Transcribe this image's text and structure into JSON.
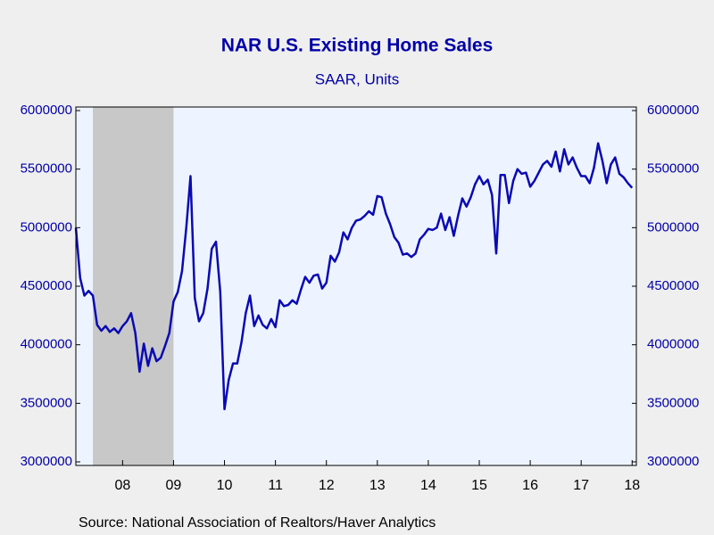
{
  "chart_data": {
    "type": "line",
    "title": "NAR U.S. Existing Home Sales",
    "subtitle": "SAAR, Units",
    "source": "Source:  National Association of Realtors/Haver Analytics",
    "x": [
      2007.583,
      2007.667,
      2007.75,
      2007.833,
      2007.917,
      2008,
      2008.083,
      2008.167,
      2008.25,
      2008.333,
      2008.417,
      2008.5,
      2008.583,
      2008.667,
      2008.75,
      2008.833,
      2008.917,
      2009,
      2009.083,
      2009.167,
      2009.25,
      2009.333,
      2009.417,
      2009.5,
      2009.583,
      2009.667,
      2009.75,
      2009.833,
      2009.917,
      2010,
      2010.083,
      2010.167,
      2010.25,
      2010.333,
      2010.417,
      2010.5,
      2010.583,
      2010.667,
      2010.75,
      2010.833,
      2010.917,
      2011,
      2011.083,
      2011.167,
      2011.25,
      2011.333,
      2011.417,
      2011.5,
      2011.583,
      2011.667,
      2011.75,
      2011.833,
      2011.917,
      2012,
      2012.083,
      2012.167,
      2012.25,
      2012.333,
      2012.417,
      2012.5,
      2012.583,
      2012.667,
      2012.75,
      2012.833,
      2012.917,
      2013,
      2013.083,
      2013.167,
      2013.25,
      2013.333,
      2013.417,
      2013.5,
      2013.583,
      2013.667,
      2013.75,
      2013.833,
      2013.917,
      2014,
      2014.083,
      2014.167,
      2014.25,
      2014.333,
      2014.417,
      2014.5,
      2014.583,
      2014.667,
      2014.75,
      2014.833,
      2014.917,
      2015,
      2015.083,
      2015.167,
      2015.25,
      2015.333,
      2015.417,
      2015.5,
      2015.583,
      2015.667,
      2015.75,
      2015.833,
      2015.917,
      2016,
      2016.083,
      2016.167,
      2016.25,
      2016.333,
      2016.417,
      2016.5,
      2016.583,
      2016.667,
      2016.75,
      2016.833,
      2016.917,
      2017,
      2017.083,
      2017.167,
      2017.25,
      2017.333,
      2017.417,
      2017.5,
      2017.583,
      2017.667,
      2017.75,
      2017.833,
      2017.917,
      2018,
      2018.083,
      2018.167,
      2018.25,
      2018.333,
      2018.417,
      2018.5
    ],
    "series": [
      {
        "color": "#0a0ab4",
        "values": [
          5000000,
          4570000,
          4420000,
          4460000,
          4420000,
          4170000,
          4120000,
          4160000,
          4110000,
          4140000,
          4100000,
          4160000,
          4200000,
          4270000,
          4100000,
          3770000,
          4010000,
          3820000,
          3970000,
          3860000,
          3890000,
          3990000,
          4100000,
          4370000,
          4450000,
          4630000,
          5000000,
          5440000,
          4400000,
          4200000,
          4270000,
          4480000,
          4820000,
          4880000,
          4450000,
          3450000,
          3700000,
          3840000,
          3840000,
          4020000,
          4270000,
          4420000,
          4160000,
          4250000,
          4170000,
          4140000,
          4220000,
          4150000,
          4380000,
          4330000,
          4340000,
          4380000,
          4350000,
          4470000,
          4580000,
          4530000,
          4590000,
          4600000,
          4480000,
          4530000,
          4760000,
          4710000,
          4790000,
          4960000,
          4900000,
          5000000,
          5060000,
          5070000,
          5100000,
          5140000,
          5110000,
          5270000,
          5260000,
          5120000,
          5030000,
          4920000,
          4870000,
          4770000,
          4780000,
          4750000,
          4780000,
          4900000,
          4940000,
          4990000,
          4980000,
          5000000,
          5120000,
          4980000,
          5090000,
          4930000,
          5100000,
          5250000,
          5180000,
          5260000,
          5370000,
          5440000,
          5370000,
          5410000,
          5280000,
          4780000,
          5450000,
          5450000,
          5210000,
          5400000,
          5500000,
          5460000,
          5470000,
          5350000,
          5400000,
          5470000,
          5540000,
          5570000,
          5520000,
          5650000,
          5480000,
          5670000,
          5540000,
          5600000,
          5510000,
          5440000,
          5440000,
          5380000,
          5510000,
          5720000,
          5570000,
          5380000,
          5540000,
          5600000,
          5460000,
          5430000,
          5380000,
          5340000
        ]
      }
    ],
    "recession": [
      2007.917,
      2009.5
    ],
    "xlim": [
      2007.583,
      2018.583
    ],
    "xticks": [
      {
        "value": 2008.5,
        "label": "08"
      },
      {
        "value": 2009.5,
        "label": "09"
      },
      {
        "value": 2010.5,
        "label": "10"
      },
      {
        "value": 2011.5,
        "label": "11"
      },
      {
        "value": 2012.5,
        "label": "12"
      },
      {
        "value": 2013.5,
        "label": "13"
      },
      {
        "value": 2014.5,
        "label": "14"
      },
      {
        "value": 2015.5,
        "label": "15"
      },
      {
        "value": 2016.5,
        "label": "16"
      },
      {
        "value": 2017.5,
        "label": "17"
      },
      {
        "value": 2018.5,
        "label": "18"
      }
    ],
    "ylim": [
      3000000,
      6000000
    ],
    "yticks": [
      3000000,
      3500000,
      4000000,
      4500000,
      5000000,
      5500000,
      6000000
    ],
    "y2lim": [
      3000000,
      6000000
    ],
    "y2ticks": [
      3000000,
      3500000,
      4000000,
      4500000,
      5000000,
      5500000,
      6000000
    ]
  }
}
